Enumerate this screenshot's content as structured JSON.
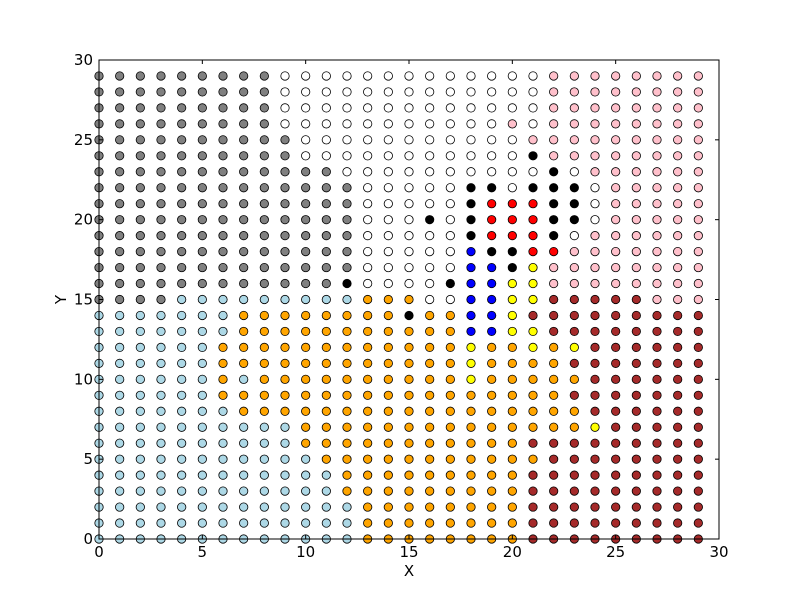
{
  "chart_data": {
    "type": "scatter",
    "title": "",
    "xlabel": "X",
    "ylabel": "Y",
    "xlim": [
      0,
      30
    ],
    "ylim": [
      0,
      30
    ],
    "xticks": [
      0,
      5,
      10,
      15,
      20,
      25,
      30
    ],
    "yticks": [
      0,
      5,
      10,
      15,
      20,
      25,
      30
    ],
    "xtick_labels": [
      "0",
      "5",
      "10",
      "15",
      "20",
      "25",
      "30"
    ],
    "ytick_labels": [
      "0",
      "5",
      "10",
      "15",
      "20",
      "25",
      "30"
    ],
    "grid": false,
    "legend": false,
    "point_grid": {
      "x": [
        0,
        29
      ],
      "y": [
        0,
        29
      ],
      "step": 1
    },
    "colors": {
      "gray": "#808080",
      "lightblue": "#add8e6",
      "white": "#ffffff",
      "orange": "#ffa500",
      "pink": "#ffc0cb",
      "brown": "#a52a2a",
      "black": "#000000",
      "red": "#ff0000",
      "blue": "#0000ff",
      "yellow": "#ffff00",
      "marker_edge": "#000000"
    },
    "rows": [
      {
        "y": 29,
        "runs": [
          [
            0,
            8,
            "gray"
          ],
          [
            9,
            20,
            "white"
          ],
          [
            21,
            21,
            "white"
          ],
          [
            22,
            29,
            "pink"
          ]
        ]
      },
      {
        "y": 28,
        "runs": [
          [
            0,
            8,
            "gray"
          ],
          [
            9,
            21,
            "white"
          ],
          [
            22,
            29,
            "pink"
          ]
        ]
      },
      {
        "y": 27,
        "runs": [
          [
            0,
            8,
            "gray"
          ],
          [
            9,
            21,
            "white"
          ],
          [
            22,
            29,
            "pink"
          ]
        ]
      },
      {
        "y": 26,
        "runs": [
          [
            0,
            8,
            "gray"
          ],
          [
            9,
            19,
            "white"
          ],
          [
            20,
            20,
            "pink"
          ],
          [
            21,
            21,
            "white"
          ],
          [
            22,
            29,
            "pink"
          ]
        ]
      },
      {
        "y": 25,
        "runs": [
          [
            0,
            9,
            "gray"
          ],
          [
            10,
            20,
            "white"
          ],
          [
            21,
            29,
            "pink"
          ]
        ]
      },
      {
        "y": 24,
        "runs": [
          [
            0,
            9,
            "gray"
          ],
          [
            10,
            20,
            "white"
          ],
          [
            21,
            21,
            "black"
          ],
          [
            22,
            29,
            "pink"
          ]
        ]
      },
      {
        "y": 23,
        "runs": [
          [
            0,
            11,
            "gray"
          ],
          [
            12,
            21,
            "white"
          ],
          [
            22,
            22,
            "black"
          ],
          [
            23,
            23,
            "white"
          ],
          [
            24,
            29,
            "pink"
          ]
        ]
      },
      {
        "y": 22,
        "runs": [
          [
            0,
            12,
            "gray"
          ],
          [
            13,
            17,
            "white"
          ],
          [
            18,
            19,
            "black"
          ],
          [
            20,
            20,
            "white"
          ],
          [
            21,
            23,
            "black"
          ],
          [
            24,
            24,
            "white"
          ],
          [
            25,
            29,
            "pink"
          ]
        ]
      },
      {
        "y": 21,
        "runs": [
          [
            0,
            12,
            "gray"
          ],
          [
            13,
            17,
            "white"
          ],
          [
            18,
            18,
            "black"
          ],
          [
            19,
            21,
            "red"
          ],
          [
            22,
            23,
            "black"
          ],
          [
            24,
            24,
            "white"
          ],
          [
            25,
            29,
            "pink"
          ]
        ]
      },
      {
        "y": 20,
        "runs": [
          [
            0,
            12,
            "gray"
          ],
          [
            13,
            15,
            "white"
          ],
          [
            16,
            16,
            "black"
          ],
          [
            17,
            17,
            "white"
          ],
          [
            18,
            18,
            "black"
          ],
          [
            19,
            21,
            "red"
          ],
          [
            22,
            23,
            "black"
          ],
          [
            24,
            24,
            "white"
          ],
          [
            25,
            29,
            "pink"
          ]
        ]
      },
      {
        "y": 19,
        "runs": [
          [
            0,
            12,
            "gray"
          ],
          [
            13,
            17,
            "white"
          ],
          [
            18,
            18,
            "black"
          ],
          [
            19,
            21,
            "red"
          ],
          [
            22,
            22,
            "black"
          ],
          [
            23,
            23,
            "white"
          ],
          [
            24,
            29,
            "pink"
          ]
        ]
      },
      {
        "y": 18,
        "runs": [
          [
            0,
            12,
            "gray"
          ],
          [
            13,
            17,
            "white"
          ],
          [
            18,
            18,
            "blue"
          ],
          [
            19,
            20,
            "black"
          ],
          [
            21,
            21,
            "red"
          ],
          [
            22,
            22,
            "red"
          ],
          [
            23,
            29,
            "pink"
          ]
        ]
      },
      {
        "y": 17,
        "runs": [
          [
            0,
            12,
            "gray"
          ],
          [
            13,
            17,
            "white"
          ],
          [
            18,
            19,
            "blue"
          ],
          [
            20,
            20,
            "black"
          ],
          [
            21,
            21,
            "yellow"
          ],
          [
            22,
            29,
            "pink"
          ]
        ]
      },
      {
        "y": 16,
        "runs": [
          [
            0,
            11,
            "gray"
          ],
          [
            12,
            12,
            "black"
          ],
          [
            13,
            16,
            "white"
          ],
          [
            17,
            17,
            "black"
          ],
          [
            18,
            19,
            "blue"
          ],
          [
            20,
            20,
            "yellow"
          ],
          [
            21,
            21,
            "yellow"
          ],
          [
            22,
            29,
            "pink"
          ]
        ]
      },
      {
        "y": 15,
        "runs": [
          [
            0,
            3,
            "gray"
          ],
          [
            4,
            12,
            "lightblue"
          ],
          [
            13,
            15,
            "orange"
          ],
          [
            16,
            17,
            "white"
          ],
          [
            18,
            19,
            "blue"
          ],
          [
            20,
            21,
            "yellow"
          ],
          [
            22,
            22,
            "brown"
          ],
          [
            23,
            26,
            "brown"
          ],
          [
            27,
            29,
            "pink"
          ]
        ]
      },
      {
        "y": 14,
        "runs": [
          [
            0,
            6,
            "lightblue"
          ],
          [
            7,
            14,
            "orange"
          ],
          [
            15,
            15,
            "black"
          ],
          [
            16,
            17,
            "orange"
          ],
          [
            18,
            19,
            "blue"
          ],
          [
            20,
            20,
            "yellow"
          ],
          [
            21,
            29,
            "brown"
          ]
        ]
      },
      {
        "y": 13,
        "runs": [
          [
            0,
            6,
            "lightblue"
          ],
          [
            7,
            17,
            "orange"
          ],
          [
            18,
            19,
            "blue"
          ],
          [
            20,
            21,
            "yellow"
          ],
          [
            22,
            29,
            "brown"
          ]
        ]
      },
      {
        "y": 12,
        "runs": [
          [
            0,
            5,
            "lightblue"
          ],
          [
            6,
            17,
            "orange"
          ],
          [
            18,
            18,
            "yellow"
          ],
          [
            19,
            20,
            "orange"
          ],
          [
            21,
            21,
            "yellow"
          ],
          [
            22,
            22,
            "orange"
          ],
          [
            23,
            23,
            "yellow"
          ],
          [
            24,
            29,
            "brown"
          ]
        ]
      },
      {
        "y": 11,
        "runs": [
          [
            0,
            5,
            "lightblue"
          ],
          [
            6,
            17,
            "orange"
          ],
          [
            18,
            18,
            "yellow"
          ],
          [
            19,
            22,
            "orange"
          ],
          [
            23,
            29,
            "brown"
          ]
        ]
      },
      {
        "y": 10,
        "runs": [
          [
            0,
            5,
            "lightblue"
          ],
          [
            6,
            6,
            "orange"
          ],
          [
            7,
            7,
            "lightblue"
          ],
          [
            8,
            17,
            "orange"
          ],
          [
            18,
            18,
            "yellow"
          ],
          [
            19,
            23,
            "orange"
          ],
          [
            24,
            29,
            "brown"
          ]
        ]
      },
      {
        "y": 9,
        "runs": [
          [
            0,
            5,
            "lightblue"
          ],
          [
            6,
            22,
            "orange"
          ],
          [
            23,
            29,
            "brown"
          ]
        ]
      },
      {
        "y": 8,
        "runs": [
          [
            0,
            6,
            "lightblue"
          ],
          [
            7,
            23,
            "orange"
          ],
          [
            24,
            29,
            "brown"
          ]
        ]
      },
      {
        "y": 7,
        "runs": [
          [
            0,
            9,
            "lightblue"
          ],
          [
            10,
            23,
            "orange"
          ],
          [
            24,
            24,
            "yellow"
          ],
          [
            25,
            29,
            "brown"
          ]
        ]
      },
      {
        "y": 6,
        "runs": [
          [
            0,
            9,
            "lightblue"
          ],
          [
            10,
            20,
            "orange"
          ],
          [
            21,
            29,
            "brown"
          ]
        ]
      },
      {
        "y": 5,
        "runs": [
          [
            0,
            10,
            "lightblue"
          ],
          [
            11,
            21,
            "orange"
          ],
          [
            22,
            29,
            "brown"
          ]
        ]
      },
      {
        "y": 4,
        "runs": [
          [
            0,
            11,
            "lightblue"
          ],
          [
            12,
            20,
            "orange"
          ],
          [
            21,
            29,
            "brown"
          ]
        ]
      },
      {
        "y": 3,
        "runs": [
          [
            0,
            11,
            "lightblue"
          ],
          [
            12,
            20,
            "orange"
          ],
          [
            21,
            29,
            "brown"
          ]
        ]
      },
      {
        "y": 2,
        "runs": [
          [
            0,
            12,
            "lightblue"
          ],
          [
            13,
            20,
            "orange"
          ],
          [
            21,
            29,
            "brown"
          ]
        ]
      },
      {
        "y": 1,
        "runs": [
          [
            0,
            12,
            "lightblue"
          ],
          [
            13,
            20,
            "orange"
          ],
          [
            21,
            29,
            "brown"
          ]
        ]
      },
      {
        "y": 0,
        "runs": [
          [
            0,
            12,
            "lightblue"
          ],
          [
            13,
            20,
            "orange"
          ],
          [
            21,
            29,
            "brown"
          ]
        ]
      }
    ]
  }
}
